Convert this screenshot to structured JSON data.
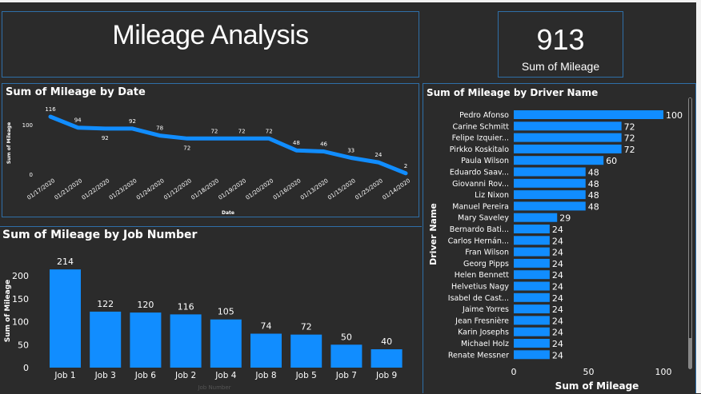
{
  "header": {
    "title": "Mileage Analysis"
  },
  "kpi": {
    "value": "913",
    "label": "Sum of Mileage"
  },
  "colors": {
    "accent": "#118dff",
    "background": "#2b2b2b",
    "panel_border": "#2f6fa8",
    "text": "#ffffff"
  },
  "chart_data": [
    {
      "id": "by-date",
      "type": "line",
      "title": "Sum of Mileage by Date",
      "xlabel": "Date",
      "ylabel": "Sum of Mileage",
      "categories": [
        "01/17/2020",
        "01/21/2020",
        "01/22/2020",
        "01/23/2020",
        "01/24/2020",
        "01/12/2020",
        "01/18/2020",
        "01/19/2020",
        "01/20/2020",
        "01/16/2020",
        "01/13/2020",
        "01/15/2020",
        "01/25/2020",
        "01/14/2020"
      ],
      "values": [
        116,
        94,
        92,
        92,
        78,
        72,
        72,
        72,
        72,
        48,
        46,
        33,
        24,
        2
      ],
      "yticks": [
        0,
        100
      ],
      "ylim": [
        0,
        120
      ],
      "grid": false
    },
    {
      "id": "by-job",
      "type": "bar",
      "title": "Sum of Mileage by Job Number",
      "xlabel": "Job Number",
      "ylabel": "Sum of Mileage",
      "categories": [
        "Job 1",
        "Job 3",
        "Job 6",
        "Job 2",
        "Job 4",
        "Job 8",
        "Job 5",
        "Job 7",
        "Job 9"
      ],
      "values": [
        214,
        122,
        120,
        116,
        105,
        74,
        72,
        50,
        40
      ],
      "yticks": [
        0,
        50,
        100,
        150,
        200
      ],
      "ylim": [
        0,
        225
      ],
      "grid": false
    },
    {
      "id": "by-driver",
      "type": "bar",
      "orientation": "horizontal",
      "title": "Sum of Mileage by Driver Name",
      "xlabel": "Sum of Mileage",
      "ylabel": "Driver Name",
      "categories": [
        "Pedro Afonso",
        "Carine Schmitt",
        "Felipe Izquier...",
        "Pirkko Koskitalo",
        "Paula Wilson",
        "Eduardo Saav...",
        "Giovanni Rov...",
        "Liz Nixon",
        "Manuel Pereira",
        "Mary Saveley",
        "Bernardo Bati...",
        "Carlos Hernán...",
        "Fran Wilson",
        "Georg Pipps",
        "Helen Bennett",
        "Helvetius Nagy",
        "Isabel de Cast...",
        "Jaime Yorres",
        "Jean Fresnière",
        "Karin Josephs",
        "Michael Holz",
        "Renate Messner"
      ],
      "values": [
        100,
        72,
        72,
        72,
        60,
        48,
        48,
        48,
        48,
        29,
        24,
        24,
        24,
        24,
        24,
        24,
        24,
        24,
        24,
        24,
        24,
        24
      ],
      "xticks": [
        0,
        50,
        100
      ],
      "xlim": [
        0,
        112
      ],
      "grid": false
    }
  ]
}
